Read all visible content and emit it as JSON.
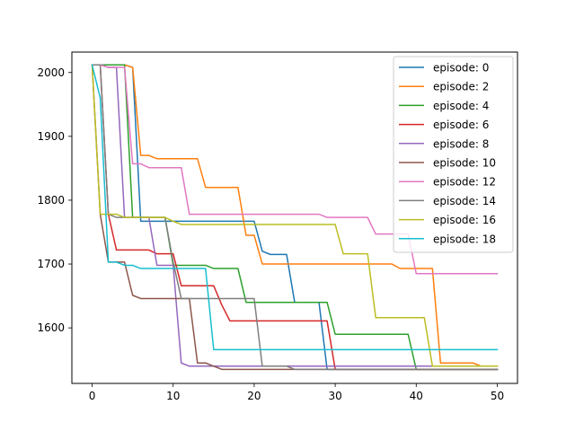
{
  "chart_data": {
    "type": "line",
    "title": "",
    "xlabel": "",
    "ylabel": "",
    "xlim": [
      -2.5,
      52.5
    ],
    "ylim": [
      1513,
      2032
    ],
    "xticks": [
      0,
      10,
      20,
      30,
      40,
      50
    ],
    "yticks": [
      1600,
      1700,
      1800,
      1900,
      2000
    ],
    "grid": false,
    "legend_position": "top-right",
    "series": [
      {
        "name": "episode: 0",
        "color": "#1f77b4",
        "x": [
          0,
          1,
          2,
          3,
          4,
          5,
          6,
          7,
          8,
          9,
          10,
          11,
          12,
          13,
          14,
          15,
          16,
          17,
          18,
          19,
          20,
          21,
          22,
          23,
          24,
          25,
          26,
          27,
          28,
          29,
          30,
          31,
          32,
          33,
          34,
          35,
          36,
          37,
          38,
          39,
          40,
          41,
          42,
          43,
          44,
          45,
          46,
          47,
          48,
          49,
          50
        ],
        "y": [
          2012,
          2012,
          2012,
          2012,
          2012,
          2008,
          1767,
          1767,
          1767,
          1767,
          1767,
          1767,
          1767,
          1767,
          1767,
          1767,
          1767,
          1767,
          1767,
          1767,
          1767,
          1720,
          1715,
          1715,
          1715,
          1640,
          1640,
          1640,
          1640,
          1535,
          1535,
          1535,
          1535,
          1535,
          1535,
          1535,
          1535,
          1535,
          1535,
          1535,
          1535,
          1535,
          1535,
          1535,
          1535,
          1535,
          1535,
          1535,
          1535,
          1535,
          1535
        ]
      },
      {
        "name": "episode: 2",
        "color": "#ff7f0e",
        "x": [
          0,
          1,
          2,
          3,
          4,
          5,
          6,
          7,
          8,
          9,
          10,
          11,
          12,
          13,
          14,
          15,
          16,
          17,
          18,
          19,
          20,
          21,
          22,
          23,
          24,
          25,
          26,
          27,
          28,
          29,
          30,
          31,
          32,
          33,
          34,
          35,
          36,
          37,
          38,
          39,
          40,
          41,
          42,
          43,
          44,
          45,
          46,
          47,
          48,
          49,
          50
        ],
        "y": [
          2012,
          2012,
          2012,
          2012,
          2012,
          2008,
          1870,
          1870,
          1865,
          1865,
          1865,
          1865,
          1865,
          1865,
          1820,
          1820,
          1820,
          1820,
          1820,
          1745,
          1745,
          1700,
          1700,
          1700,
          1700,
          1700,
          1700,
          1700,
          1700,
          1700,
          1700,
          1700,
          1700,
          1700,
          1700,
          1700,
          1700,
          1700,
          1693,
          1693,
          1693,
          1693,
          1693,
          1545,
          1545,
          1545,
          1545,
          1545,
          1540,
          1540,
          1540
        ]
      },
      {
        "name": "episode: 4",
        "color": "#2ca02c",
        "x": [
          0,
          1,
          2,
          3,
          4,
          5,
          6,
          7,
          8,
          9,
          10,
          11,
          12,
          13,
          14,
          15,
          16,
          17,
          18,
          19,
          20,
          21,
          22,
          23,
          24,
          25,
          26,
          27,
          28,
          29,
          30,
          31,
          32,
          33,
          34,
          35,
          36,
          37,
          38,
          39,
          40,
          41,
          42,
          43,
          44,
          45,
          46,
          47,
          48,
          49,
          50
        ],
        "y": [
          2012,
          2012,
          2012,
          2012,
          2012,
          1773,
          1773,
          1773,
          1773,
          1773,
          1698,
          1698,
          1698,
          1698,
          1698,
          1693,
          1693,
          1693,
          1693,
          1640,
          1640,
          1640,
          1640,
          1640,
          1640,
          1640,
          1640,
          1640,
          1640,
          1640,
          1590,
          1590,
          1590,
          1590,
          1590,
          1590,
          1590,
          1590,
          1590,
          1590,
          1535,
          1535,
          1535,
          1535,
          1535,
          1535,
          1535,
          1535,
          1535,
          1535,
          1535
        ]
      },
      {
        "name": "episode: 6",
        "color": "#d62728",
        "x": [
          0,
          1,
          2,
          3,
          4,
          5,
          6,
          7,
          8,
          9,
          10,
          11,
          12,
          13,
          14,
          15,
          16,
          17,
          18,
          19,
          20,
          21,
          22,
          23,
          24,
          25,
          26,
          27,
          28,
          29,
          30,
          31,
          32,
          33,
          34,
          35,
          36,
          37,
          38,
          39,
          40,
          41,
          42,
          43,
          44,
          45,
          46,
          47,
          48,
          49,
          50
        ],
        "y": [
          2012,
          2012,
          1778,
          1722,
          1722,
          1722,
          1722,
          1722,
          1716,
          1716,
          1716,
          1666,
          1666,
          1666,
          1666,
          1666,
          1636,
          1611,
          1611,
          1611,
          1611,
          1611,
          1611,
          1611,
          1611,
          1611,
          1611,
          1611,
          1611,
          1611,
          1535,
          1535,
          1535,
          1535,
          1535,
          1535,
          1535,
          1535,
          1535,
          1535,
          1535,
          1535,
          1535,
          1535,
          1535,
          1535,
          1535,
          1535,
          1535,
          1535,
          1535
        ]
      },
      {
        "name": "episode: 8",
        "color": "#9467bd",
        "x": [
          0,
          1,
          2,
          3,
          4,
          5,
          6,
          7,
          8,
          9,
          10,
          11,
          12,
          13,
          14,
          15,
          16,
          17,
          18,
          19,
          20,
          21,
          22,
          23,
          24,
          25,
          26,
          27,
          28,
          29,
          30,
          31,
          32,
          33,
          34,
          35,
          36,
          37,
          38,
          39,
          40,
          41,
          42,
          43,
          44,
          45,
          46,
          47,
          48,
          49,
          50
        ],
        "y": [
          2012,
          2012,
          2008,
          2008,
          1773,
          1773,
          1773,
          1773,
          1698,
          1698,
          1698,
          1545,
          1540,
          1540,
          1540,
          1540,
          1540,
          1540,
          1540,
          1540,
          1540,
          1540,
          1540,
          1540,
          1540,
          1540,
          1540,
          1540,
          1540,
          1540,
          1540,
          1540,
          1540,
          1540,
          1540,
          1540,
          1540,
          1540,
          1540,
          1540,
          1540,
          1540,
          1540,
          1540,
          1540,
          1540,
          1540,
          1540,
          1540,
          1540,
          1540
        ]
      },
      {
        "name": "episode: 10",
        "color": "#8c564b",
        "x": [
          0,
          1,
          2,
          3,
          4,
          5,
          6,
          7,
          8,
          9,
          10,
          11,
          12,
          13,
          14,
          15,
          16,
          17,
          18,
          19,
          20,
          21,
          22,
          23,
          24,
          25,
          26,
          27,
          28,
          29,
          30,
          31,
          32,
          33,
          34,
          35,
          36,
          37,
          38,
          39,
          40,
          41,
          42,
          43,
          44,
          45,
          46,
          47,
          48,
          49,
          50
        ],
        "y": [
          2012,
          1778,
          1703,
          1703,
          1703,
          1651,
          1646,
          1646,
          1646,
          1646,
          1646,
          1646,
          1646,
          1545,
          1545,
          1540,
          1535,
          1535,
          1535,
          1535,
          1535,
          1535,
          1535,
          1535,
          1535,
          1535,
          1535,
          1535,
          1535,
          1535,
          1535,
          1535,
          1535,
          1535,
          1535,
          1535,
          1535,
          1535,
          1535,
          1535,
          1535,
          1535,
          1535,
          1535,
          1535,
          1535,
          1535,
          1535,
          1535,
          1535,
          1535
        ]
      },
      {
        "name": "episode: 12",
        "color": "#e377c2",
        "x": [
          0,
          1,
          2,
          3,
          4,
          5,
          6,
          7,
          8,
          9,
          10,
          11,
          12,
          13,
          14,
          15,
          16,
          17,
          18,
          19,
          20,
          21,
          22,
          23,
          24,
          25,
          26,
          27,
          28,
          29,
          30,
          31,
          32,
          33,
          34,
          35,
          36,
          37,
          38,
          39,
          40,
          41,
          42,
          43,
          44,
          45,
          46,
          47,
          48,
          49,
          50
        ],
        "y": [
          2012,
          2012,
          2008,
          2008,
          2008,
          1857,
          1857,
          1851,
          1851,
          1851,
          1851,
          1851,
          1778,
          1778,
          1778,
          1778,
          1778,
          1778,
          1778,
          1778,
          1778,
          1778,
          1778,
          1778,
          1778,
          1778,
          1778,
          1778,
          1778,
          1773,
          1773,
          1773,
          1773,
          1773,
          1773,
          1747,
          1747,
          1747,
          1747,
          1747,
          1685,
          1685,
          1685,
          1685,
          1685,
          1685,
          1685,
          1685,
          1685,
          1685,
          1685
        ]
      },
      {
        "name": "episode: 14",
        "color": "#7f7f7f",
        "x": [
          0,
          1,
          2,
          3,
          4,
          5,
          6,
          7,
          8,
          9,
          10,
          11,
          12,
          13,
          14,
          15,
          16,
          17,
          18,
          19,
          20,
          21,
          22,
          23,
          24,
          25,
          26,
          27,
          28,
          29,
          30,
          31,
          32,
          33,
          34,
          35,
          36,
          37,
          38,
          39,
          40,
          41,
          42,
          43,
          44,
          45,
          46,
          47,
          48,
          49,
          50
        ],
        "y": [
          2012,
          2012,
          1778,
          1773,
          1773,
          1773,
          1773,
          1773,
          1773,
          1773,
          1703,
          1646,
          1646,
          1646,
          1646,
          1646,
          1646,
          1646,
          1646,
          1646,
          1646,
          1540,
          1540,
          1540,
          1540,
          1535,
          1535,
          1535,
          1535,
          1535,
          1535,
          1535,
          1535,
          1535,
          1535,
          1535,
          1535,
          1535,
          1535,
          1535,
          1535,
          1535,
          1535,
          1535,
          1535,
          1535,
          1535,
          1535,
          1535,
          1535,
          1535
        ]
      },
      {
        "name": "episode: 16",
        "color": "#bcbd22",
        "x": [
          0,
          1,
          2,
          3,
          4,
          5,
          6,
          7,
          8,
          9,
          10,
          11,
          12,
          13,
          14,
          15,
          16,
          17,
          18,
          19,
          20,
          21,
          22,
          23,
          24,
          25,
          26,
          27,
          28,
          29,
          30,
          31,
          32,
          33,
          34,
          35,
          36,
          37,
          38,
          39,
          40,
          41,
          42,
          43,
          44,
          45,
          46,
          47,
          48,
          49,
          50
        ],
        "y": [
          2012,
          1778,
          1778,
          1778,
          1773,
          1773,
          1773,
          1773,
          1773,
          1773,
          1767,
          1762,
          1762,
          1762,
          1762,
          1762,
          1762,
          1762,
          1762,
          1762,
          1762,
          1762,
          1762,
          1762,
          1762,
          1762,
          1762,
          1762,
          1762,
          1762,
          1762,
          1716,
          1716,
          1716,
          1716,
          1616,
          1616,
          1616,
          1616,
          1616,
          1616,
          1616,
          1540,
          1540,
          1540,
          1540,
          1540,
          1540,
          1540,
          1540,
          1540
        ]
      },
      {
        "name": "episode: 18",
        "color": "#17becf",
        "x": [
          0,
          1,
          2,
          3,
          4,
          5,
          6,
          7,
          8,
          9,
          10,
          11,
          12,
          13,
          14,
          15,
          16,
          17,
          18,
          19,
          20,
          21,
          22,
          23,
          24,
          25,
          26,
          27,
          28,
          29,
          30,
          31,
          32,
          33,
          34,
          35,
          36,
          37,
          38,
          39,
          40,
          41,
          42,
          43,
          44,
          45,
          46,
          47,
          48,
          49,
          50
        ],
        "y": [
          2012,
          1960,
          1703,
          1703,
          1698,
          1698,
          1693,
          1693,
          1693,
          1693,
          1693,
          1693,
          1693,
          1693,
          1693,
          1566,
          1566,
          1566,
          1566,
          1566,
          1566,
          1566,
          1566,
          1566,
          1566,
          1566,
          1566,
          1566,
          1566,
          1566,
          1566,
          1566,
          1566,
          1566,
          1566,
          1566,
          1566,
          1566,
          1566,
          1566,
          1566,
          1566,
          1566,
          1566,
          1566,
          1566,
          1566,
          1566,
          1566,
          1566,
          1566
        ]
      }
    ]
  }
}
